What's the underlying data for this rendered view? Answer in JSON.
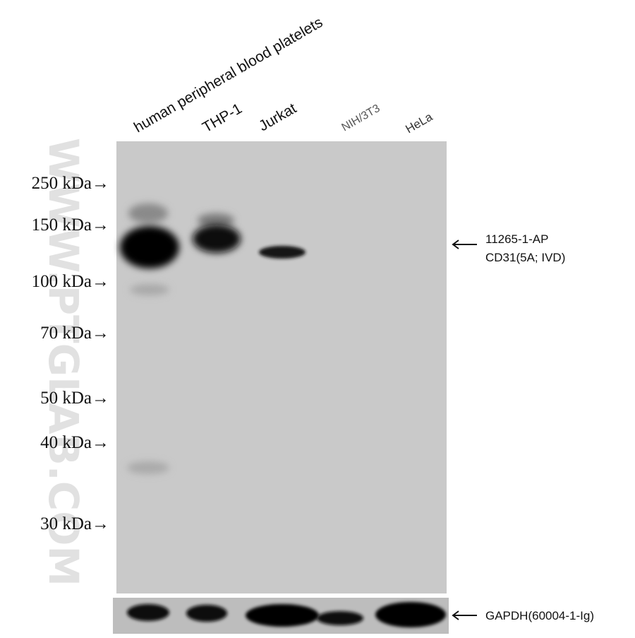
{
  "lanes": [
    "human peripheral blood platelets",
    "THP-1",
    "Jurkat",
    "NIH/3T3",
    "HeLa"
  ],
  "markers": [
    "250 kDa→",
    "150 kDa→",
    "100 kDa→",
    "70 kDa→",
    "50 kDa→",
    "40 kDa→",
    "30 kDa→"
  ],
  "annotations": {
    "target": [
      "11265-1-AP",
      "CD31(5A; IVD)"
    ],
    "loading_control": "GAPDH(60004-1-Ig)"
  },
  "watermark": "WWW.PTGLAB.COM"
}
